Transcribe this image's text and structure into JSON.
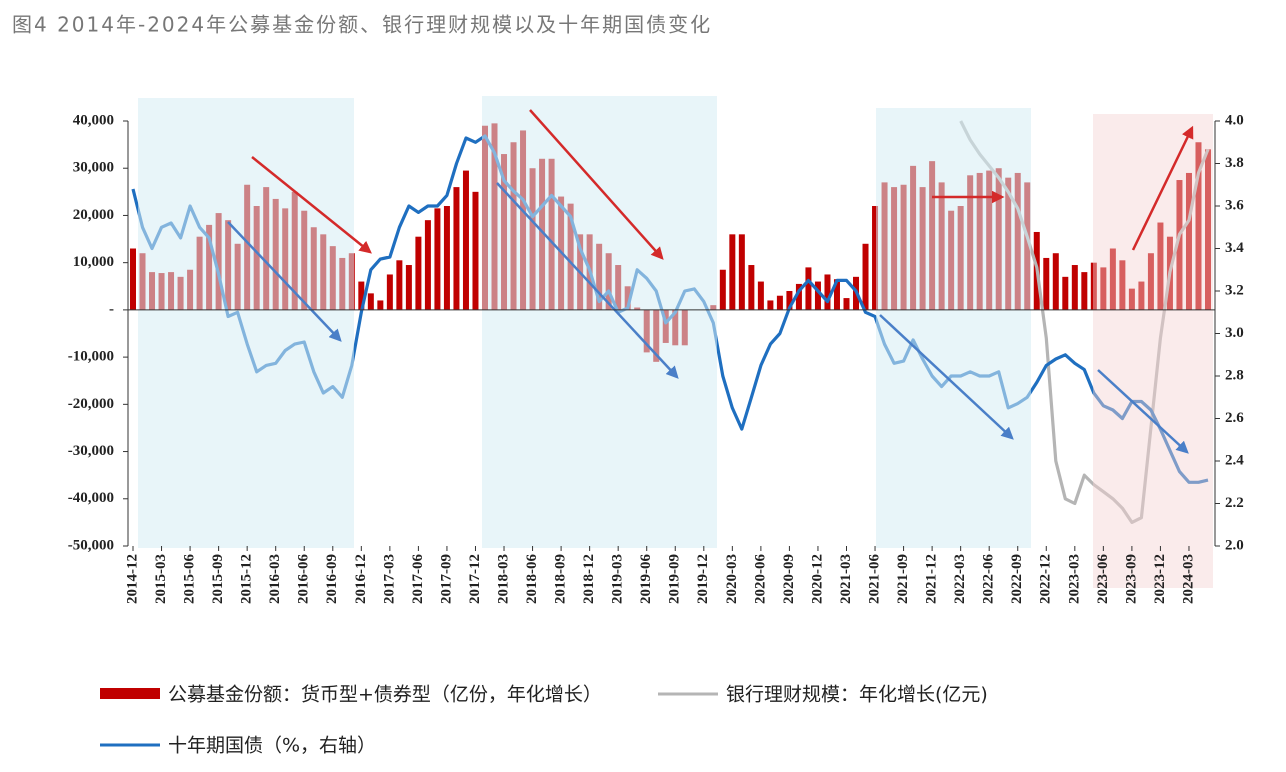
{
  "chart_data": {
    "type": "bar",
    "title": "图4 2014年-2024年公募基金份额、银行理财规模以及十年期国债变化",
    "categories": [
      "2014-12",
      null,
      null,
      "2015-03",
      null,
      null,
      "2015-06",
      null,
      null,
      "2015-09",
      null,
      null,
      "2015-12",
      null,
      null,
      "2016-03",
      null,
      null,
      "2016-06",
      null,
      null,
      "2016-09",
      null,
      null,
      "2016-12",
      null,
      null,
      "2017-03",
      null,
      null,
      "2017-06",
      null,
      null,
      "2017-09",
      null,
      null,
      "2017-12",
      null,
      null,
      "2018-03",
      null,
      null,
      "2018-06",
      null,
      null,
      "2018-09",
      null,
      null,
      "2018-12",
      null,
      null,
      "2019-03",
      null,
      null,
      "2019-06",
      null,
      null,
      "2019-09",
      null,
      null,
      "2019-12",
      null,
      null,
      "2020-03",
      null,
      null,
      "2020-06",
      null,
      null,
      "2020-09",
      null,
      null,
      "2020-12",
      null,
      null,
      "2021-03",
      null,
      null,
      "2021-06",
      null,
      null,
      "2021-09",
      null,
      null,
      "2021-12",
      null,
      null,
      "2022-03",
      null,
      null,
      "2022-06",
      null,
      null,
      "2022-09",
      null,
      null,
      "2022-12",
      null,
      null,
      "2023-03",
      null,
      null,
      "2023-06",
      null,
      null,
      "2023-09",
      null,
      null,
      "2023-12",
      null,
      null,
      "2024-03",
      null,
      null
    ],
    "series": [
      {
        "name": "公募基金份额：货币型+债券型（亿份，年化增长）",
        "type": "bar",
        "color": "#c00000",
        "values": [
          13000,
          12000,
          8000,
          7800,
          8000,
          7000,
          8500,
          15500,
          18000,
          20500,
          19000,
          14000,
          26500,
          22000,
          26000,
          23500,
          21500,
          25000,
          21000,
          17500,
          16000,
          13500,
          11000,
          12000,
          6000,
          3500,
          2000,
          7500,
          10500,
          9500,
          15500,
          19000,
          21500,
          22000,
          26000,
          29500,
          25000,
          39000,
          39500,
          33000,
          35500,
          38000,
          30000,
          32000,
          32000,
          24000,
          22500,
          16000,
          16000,
          14000,
          12000,
          9500,
          5000,
          500,
          -9000,
          -11000,
          -7000,
          -7500,
          -7500,
          0,
          0,
          1000,
          8500,
          16000,
          16000,
          9500,
          6000,
          2000,
          3000,
          4000,
          5500,
          9000,
          6000,
          7500,
          6500,
          2500,
          7000,
          14000,
          22000,
          27000,
          26000,
          26500,
          30500,
          26000,
          31500,
          27000,
          21000,
          22000,
          28500,
          29000,
          29500,
          30000,
          28000,
          29000,
          27000,
          16500,
          11000,
          12000,
          7000,
          9500,
          8000,
          10000,
          9000,
          13000,
          10500,
          4500,
          6000,
          12000,
          18500,
          15500,
          27500,
          29000,
          35500,
          34000
        ]
      },
      {
        "name": "银行理财规模：年化增长(亿元)",
        "type": "line",
        "color": "#b5b5b5",
        "values": [
          null,
          null,
          null,
          null,
          null,
          null,
          null,
          null,
          null,
          null,
          null,
          null,
          null,
          null,
          null,
          null,
          null,
          null,
          null,
          null,
          null,
          null,
          null,
          null,
          null,
          null,
          null,
          null,
          null,
          null,
          null,
          null,
          null,
          null,
          null,
          null,
          null,
          null,
          null,
          null,
          null,
          null,
          null,
          null,
          null,
          null,
          null,
          null,
          null,
          null,
          null,
          null,
          null,
          null,
          null,
          null,
          null,
          null,
          null,
          null,
          null,
          null,
          null,
          null,
          null,
          null,
          null,
          null,
          null,
          null,
          null,
          null,
          null,
          null,
          null,
          null,
          null,
          null,
          null,
          null,
          null,
          null,
          null,
          null,
          null,
          null,
          null,
          40000,
          36000,
          33000,
          30500,
          28000,
          25000,
          21500,
          15500,
          9000,
          -6000,
          -32000,
          -40000,
          -41000,
          -35000,
          -37000,
          -38500,
          -40000,
          -42000,
          -45000,
          -44000,
          -25000,
          -6000,
          8000,
          16000,
          19000,
          29000,
          34000
        ]
      },
      {
        "name": "十年期国债（%，右轴）",
        "type": "line",
        "axis": "y2",
        "color": "#1f6fc0",
        "values": [
          3.68,
          3.5,
          3.4,
          3.5,
          3.52,
          3.45,
          3.6,
          3.5,
          3.45,
          3.28,
          3.08,
          3.1,
          2.95,
          2.82,
          2.85,
          2.86,
          2.92,
          2.95,
          2.96,
          2.82,
          2.72,
          2.75,
          2.7,
          2.85,
          3.1,
          3.3,
          3.35,
          3.36,
          3.5,
          3.6,
          3.57,
          3.6,
          3.6,
          3.65,
          3.8,
          3.92,
          3.9,
          3.93,
          3.85,
          3.72,
          3.67,
          3.63,
          3.55,
          3.6,
          3.65,
          3.6,
          3.55,
          3.4,
          3.3,
          3.15,
          3.2,
          3.1,
          3.12,
          3.3,
          3.26,
          3.2,
          3.05,
          3.1,
          3.2,
          3.21,
          3.15,
          3.05,
          2.8,
          2.65,
          2.55,
          2.7,
          2.85,
          2.95,
          3.0,
          3.12,
          3.2,
          3.25,
          3.2,
          3.15,
          3.25,
          3.25,
          3.2,
          3.1,
          3.08,
          2.95,
          2.86,
          2.87,
          2.97,
          2.88,
          2.8,
          2.75,
          2.8,
          2.8,
          2.82,
          2.8,
          2.8,
          2.82,
          2.65,
          2.67,
          2.7,
          2.77,
          2.85,
          2.88,
          2.9,
          2.86,
          2.83,
          2.72,
          2.66,
          2.64,
          2.6,
          2.68,
          2.68,
          2.64,
          2.55,
          2.45,
          2.35,
          2.3,
          2.3,
          2.31
        ]
      }
    ],
    "ylim": [
      -50000,
      40000
    ],
    "yticks": [
      {
        "value": 40000,
        "label": "40,000"
      },
      {
        "value": 30000,
        "label": "30,000"
      },
      {
        "value": 20000,
        "label": "20,000"
      },
      {
        "value": 10000,
        "label": "10,000"
      },
      {
        "value": 0,
        "label": "-"
      },
      {
        "value": -10000,
        "label": "-10,000"
      },
      {
        "value": -20000,
        "label": "-20,000"
      },
      {
        "value": -30000,
        "label": "-30,000"
      },
      {
        "value": -40000,
        "label": "-40,000"
      },
      {
        "value": -50000,
        "label": "-50,000"
      }
    ],
    "y2lim": [
      2,
      4
    ],
    "y2ticks": [
      {
        "value": 2,
        "label": "2.0"
      },
      2.2,
      2.4,
      2.6,
      2.8,
      {
        "value": 3,
        "label": "3.0"
      },
      3.2,
      3.4,
      3.6,
      3.8,
      {
        "value": 4,
        "label": "4.0"
      }
    ]
  }
}
